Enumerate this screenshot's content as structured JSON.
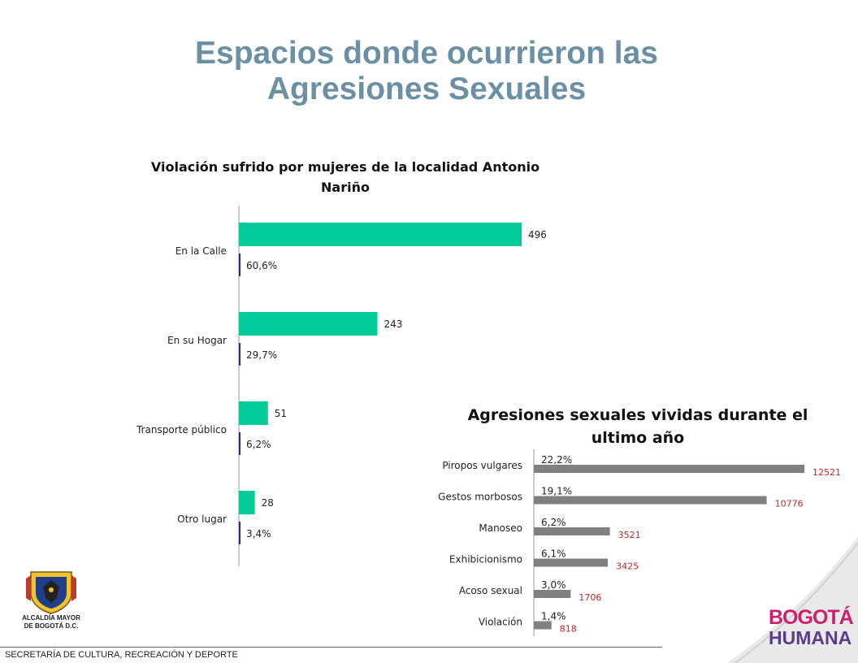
{
  "slide": {
    "title": "Espacios donde ocurrieron las Agresiones Sexuales",
    "footer": "SECRETARÍA DE CULTURA, RECREACIÓN Y DEPORTE",
    "left_logo_text_1": "ALCALDÍA MAYOR",
    "left_logo_text_2": "DE BOGOTÁ D.C.",
    "right_logo_line1": "BOGOTÁ",
    "right_logo_line2": "HUMANA"
  },
  "colors": {
    "title": "#6b8fa3",
    "bar_green": "#00cc99",
    "bar_purple": "#3a1f8a",
    "bar_gray": "#808080",
    "label_red": "#cc2222"
  },
  "chart_data": [
    {
      "type": "bar",
      "orientation": "horizontal",
      "title": "Violación sufrido por mujeres de la localidad Antonio Nariño",
      "categories": [
        "En la Calle",
        "En su Hogar",
        "Transporte público",
        "Otro lugar"
      ],
      "series": [
        {
          "values": [
            496,
            243,
            51,
            28
          ]
        },
        {
          "values": [
            60.6,
            29.7,
            6.2,
            3.4
          ]
        }
      ],
      "data_labels": [
        [
          "496",
          "243",
          "51",
          "28"
        ],
        [
          "60,6%",
          "29,7%",
          "6,2%",
          "3,4%"
        ]
      ],
      "xlim": [
        0,
        550
      ],
      "grid": false,
      "legend": "none"
    },
    {
      "type": "bar",
      "orientation": "horizontal",
      "title": "Agresiones sexuales vividas durante el ultimo año",
      "categories": [
        "Piropos vulgares",
        "Gestos morbosos",
        "Manoseo",
        "Exhibicionismo",
        "Acoso sexual",
        "Violación"
      ],
      "values": [
        12521,
        10776,
        3521,
        3425,
        1706,
        818
      ],
      "percentages": [
        22.2,
        19.1,
        6.2,
        6.1,
        3.0,
        1.4
      ],
      "data_labels": [
        "12521",
        "10776",
        "3521",
        "3425",
        "1706",
        "818"
      ],
      "percent_labels": [
        "22,2%",
        "19,1%",
        "6,2%",
        "6,1%",
        "3,0%",
        "1,4%"
      ],
      "xlim": [
        0,
        14100
      ],
      "grid": false,
      "legend": "none"
    }
  ]
}
